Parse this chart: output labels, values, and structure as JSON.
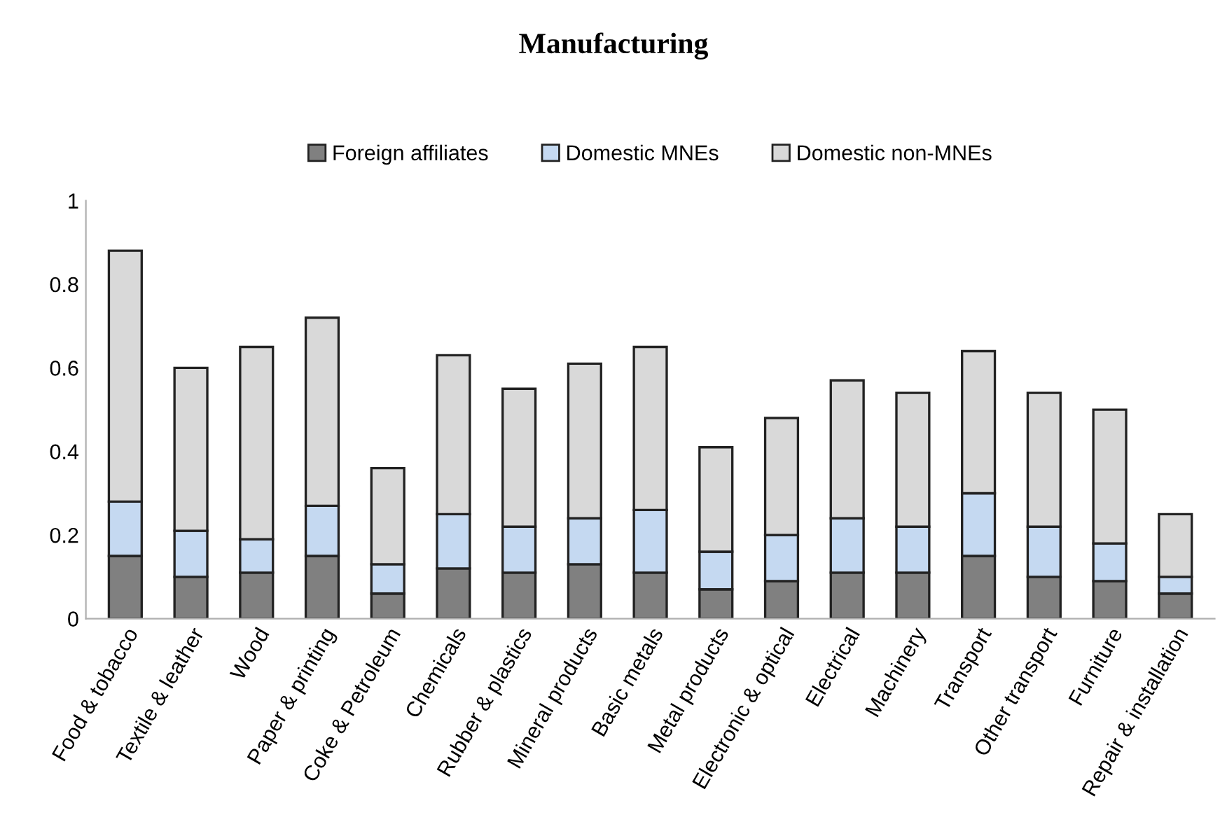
{
  "chart_data": {
    "type": "bar",
    "title": "Manufacturing",
    "stacked": true,
    "legend": "top",
    "categories": [
      "Food & tobacco",
      "Textile & leather",
      "Wood",
      "Paper & printing",
      "Coke & Petroleum",
      "Chemicals",
      "Rubber & plastics",
      "Mineral products",
      "Basic metals",
      "Metal products",
      "Electronic & optical",
      "Electrical",
      "Machinery",
      "Transport",
      "Other transport",
      "Furniture",
      "Repair & installation"
    ],
    "series": [
      {
        "name": "Foreign affiliates",
        "color": "#808080",
        "values": [
          0.15,
          0.1,
          0.11,
          0.15,
          0.06,
          0.12,
          0.11,
          0.13,
          0.11,
          0.07,
          0.09,
          0.11,
          0.11,
          0.15,
          0.1,
          0.09,
          0.06
        ]
      },
      {
        "name": "Domestic MNEs",
        "color": "#c5d9f1",
        "values": [
          0.13,
          0.11,
          0.08,
          0.12,
          0.07,
          0.13,
          0.11,
          0.11,
          0.15,
          0.09,
          0.11,
          0.13,
          0.11,
          0.15,
          0.12,
          0.09,
          0.04
        ]
      },
      {
        "name": "Domestic non-MNEs",
        "color": "#d9d9d9",
        "values": [
          0.6,
          0.39,
          0.46,
          0.45,
          0.23,
          0.38,
          0.33,
          0.37,
          0.39,
          0.25,
          0.28,
          0.33,
          0.32,
          0.34,
          0.32,
          0.32,
          0.15
        ]
      }
    ],
    "ylim": [
      0,
      1
    ],
    "yticks": [
      0,
      {
        "value": 0.2,
        "label": "0.2"
      },
      {
        "value": 0.4,
        "label": "0.4"
      },
      {
        "value": 0.6,
        "label": "0.6"
      },
      {
        "value": 0.8,
        "label": "0.8"
      },
      1
    ],
    "grid": false
  }
}
